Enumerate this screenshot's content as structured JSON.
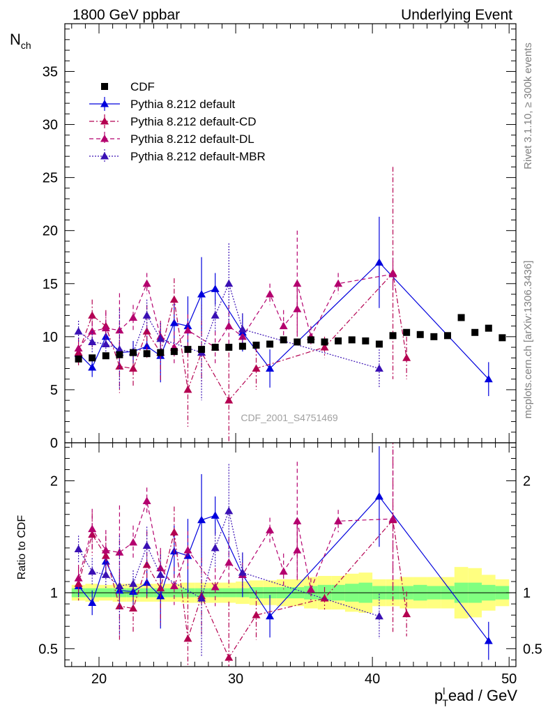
{
  "header": {
    "left": "1800 GeV ppbar",
    "right": "Underlying Event"
  },
  "side_labels": {
    "rivet": "Rivet 3.1.10, ≥ 300k events",
    "mcplots": "mcplots.cern.ch [arXiv:1306.3436]"
  },
  "watermark": "CDF_2001_S4751469",
  "chart_data": [
    {
      "type": "scatter",
      "panel": "main",
      "ylabel": {
        "base": "N",
        "sub": "ch"
      },
      "xlim": [
        17.5,
        50.5
      ],
      "ylim": [
        0,
        39.5
      ],
      "yticks": [
        0,
        5,
        10,
        15,
        20,
        25,
        30,
        35
      ],
      "legend_position": "top-left",
      "series": [
        {
          "name": "CDF",
          "color": "#000000",
          "marker": "square",
          "line": "none",
          "x": [
            18.5,
            19.5,
            20.5,
            21.5,
            22.5,
            23.5,
            24.5,
            25.5,
            26.5,
            27.5,
            28.5,
            29.5,
            30.5,
            31.5,
            32.5,
            33.5,
            34.5,
            35.5,
            36.5,
            37.5,
            38.5,
            39.5,
            40.5,
            41.5,
            42.5,
            43.5,
            44.5,
            45.5,
            46.5,
            47.5,
            48.5,
            49.5
          ],
          "y": [
            7.9,
            8.0,
            8.2,
            8.3,
            8.5,
            8.4,
            8.5,
            8.6,
            8.8,
            8.8,
            9.0,
            9.0,
            9.1,
            9.2,
            9.3,
            9.7,
            9.5,
            9.7,
            9.5,
            9.6,
            9.7,
            9.6,
            9.3,
            10.1,
            10.4,
            10.2,
            10.0,
            10.1,
            11.8,
            10.4,
            10.8,
            9.9
          ]
        },
        {
          "name": "Pythia 8.212 default",
          "color": "#0000dd",
          "marker": "triangle",
          "line": "solid",
          "x": [
            18.5,
            19.5,
            20.5,
            21.5,
            22.5,
            23.5,
            24.5,
            25.5,
            26.5,
            27.5,
            28.5,
            30.5,
            32.5,
            40.5,
            48.5
          ],
          "y": [
            8.4,
            7.1,
            10.0,
            8.5,
            8.6,
            9.1,
            8.2,
            11.3,
            11.0,
            14.0,
            14.5,
            10.4,
            7.0,
            17.0,
            6.0
          ],
          "err": [
            0.8,
            0.9,
            0.9,
            1.0,
            1.0,
            1.0,
            2.5,
            1.9,
            2.8,
            3.5,
            1.5,
            1.8,
            1.8,
            4.3,
            1.6
          ]
        },
        {
          "name": "Pythia 8.212 default-CD",
          "color": "#b40050",
          "marker": "triangle",
          "line": "dashdot",
          "x": [
            18.5,
            19.5,
            20.5,
            21.5,
            22.5,
            23.5,
            24.5,
            25.5,
            26.5,
            27.5,
            29.5,
            31.5,
            36.5,
            41.5,
            42.5
          ],
          "y": [
            8.5,
            12.0,
            11.0,
            7.2,
            7.0,
            10.5,
            8.5,
            13.5,
            5.0,
            8.5,
            4.0,
            7.0,
            9.0,
            16.0,
            8.0
          ],
          "err": [
            1.2,
            1.5,
            1.5,
            2.5,
            1.8,
            2.5,
            2.8,
            2.0,
            3.5,
            3.0,
            4.5,
            2.0,
            1.0,
            10.0,
            2.0
          ]
        },
        {
          "name": "Pythia 8.212 default-DL",
          "color": "#b4006e",
          "marker": "triangle",
          "line": "dashed",
          "x": [
            18.5,
            19.5,
            20.5,
            21.5,
            22.5,
            23.5,
            24.5,
            25.5,
            26.5,
            28.5,
            29.5,
            30.5,
            32.5,
            33.5,
            34.5,
            34.5,
            35.5,
            37.5,
            41.5
          ],
          "y": [
            8.9,
            10.5,
            10.8,
            10.6,
            11.8,
            15.0,
            10.0,
            9.0,
            10.6,
            9.0,
            11.0,
            10.0,
            14.0,
            11.0,
            12.6,
            15.0,
            10.0,
            15.0,
            15.9
          ],
          "err": [
            1.0,
            1.5,
            1.5,
            3.5,
            1.2,
            1.0,
            1.5,
            1.5,
            1.5,
            1.5,
            2.0,
            1.0,
            1.0,
            1.5,
            2.5,
            5.0,
            1.0,
            1.0,
            1.5
          ]
        },
        {
          "name": "Pythia 8.212 default-MBR",
          "color": "#3a10b4",
          "marker": "triangle",
          "line": "dotted",
          "x": [
            18.5,
            19.5,
            20.5,
            21.5,
            22.5,
            23.5,
            24.5,
            27.5,
            28.5,
            29.5,
            30.5,
            40.5
          ],
          "y": [
            10.5,
            9.5,
            9.3,
            8.8,
            8.5,
            12.0,
            9.8,
            8.5,
            12.0,
            15.0,
            10.7,
            7.0
          ],
          "err": [
            1.0,
            1.0,
            1.0,
            3.8,
            1.0,
            1.5,
            1.5,
            4.5,
            1.5,
            3.8,
            1.5,
            1.8
          ]
        }
      ]
    },
    {
      "type": "scatter",
      "panel": "ratio",
      "ylabel": "Ratio to CDF",
      "xlabel": {
        "base": "p",
        "sub": "T",
        "sup": "l",
        "rest": "ead / GeV"
      },
      "xlim": [
        17.5,
        50.5
      ],
      "ylim": [
        0.34,
        2.34
      ],
      "yticks": [
        0.5,
        1,
        2
      ],
      "xticks": [
        20,
        30,
        40,
        50
      ],
      "band_colors": {
        "outer": "#ffff80",
        "inner": "#80ff80"
      },
      "band": {
        "x": [
          18.5,
          19.5,
          20.5,
          21.5,
          22.5,
          23.5,
          24.5,
          25.5,
          26.5,
          27.5,
          28.5,
          29.5,
          30.5,
          31.5,
          32.5,
          33.5,
          34.5,
          35.5,
          36.5,
          37.5,
          38.5,
          39.5,
          40.5,
          41.5,
          42.5,
          43.5,
          44.5,
          45.5,
          46.5,
          47.5,
          48.5,
          49.5
        ],
        "inner": [
          0.04,
          0.04,
          0.04,
          0.04,
          0.04,
          0.04,
          0.04,
          0.04,
          0.04,
          0.04,
          0.04,
          0.04,
          0.04,
          0.05,
          0.05,
          0.05,
          0.05,
          0.06,
          0.07,
          0.07,
          0.08,
          0.09,
          0.06,
          0.06,
          0.06,
          0.07,
          0.06,
          0.06,
          0.09,
          0.09,
          0.07,
          0.06
        ],
        "outer": [
          0.07,
          0.08,
          0.07,
          0.08,
          0.08,
          0.08,
          0.08,
          0.08,
          0.09,
          0.09,
          0.09,
          0.09,
          0.1,
          0.11,
          0.11,
          0.12,
          0.12,
          0.14,
          0.15,
          0.15,
          0.17,
          0.18,
          0.12,
          0.12,
          0.14,
          0.14,
          0.14,
          0.14,
          0.23,
          0.22,
          0.16,
          0.12
        ]
      },
      "series": [
        {
          "name": "Pythia 8.212 default",
          "color": "#0000dd",
          "line": "solid",
          "x": [
            18.5,
            19.5,
            20.5,
            21.5,
            22.5,
            23.5,
            24.5,
            25.5,
            26.5,
            27.5,
            28.5,
            30.5,
            32.5,
            40.5,
            48.5
          ],
          "y": [
            1.06,
            0.91,
            1.28,
            1.02,
            1.01,
            1.09,
            0.97,
            1.37,
            1.33,
            1.65,
            1.69,
            1.16,
            0.79,
            1.86,
            0.57
          ],
          "err": [
            0.1,
            0.11,
            0.11,
            0.12,
            0.12,
            0.12,
            0.29,
            0.23,
            0.33,
            0.41,
            0.17,
            0.2,
            0.19,
            0.45,
            0.17
          ]
        },
        {
          "name": "Pythia 8.212 default-CD",
          "color": "#b40050",
          "line": "dashdot",
          "x": [
            18.5,
            19.5,
            20.5,
            21.5,
            22.5,
            23.5,
            24.5,
            25.5,
            26.5,
            27.5,
            29.5,
            31.5,
            36.5,
            41.5,
            42.5
          ],
          "y": [
            1.08,
            1.52,
            1.33,
            0.88,
            0.86,
            1.25,
            1.04,
            1.54,
            0.59,
            0.97,
            0.42,
            0.8,
            0.95,
            1.65,
            0.81
          ],
          "err": [
            0.15,
            0.19,
            0.18,
            0.3,
            0.21,
            0.3,
            0.33,
            0.23,
            0.4,
            0.34,
            0.5,
            0.22,
            0.1,
            1.0,
            0.2
          ]
        },
        {
          "name": "Pythia 8.212 default-DL",
          "color": "#b4006e",
          "line": "dashed",
          "x": [
            18.5,
            19.5,
            20.5,
            21.5,
            22.5,
            23.5,
            24.5,
            25.5,
            26.5,
            28.5,
            29.5,
            30.5,
            32.5,
            33.5,
            34.5,
            34.5,
            35.5,
            37.5,
            41.5
          ],
          "y": [
            1.13,
            1.57,
            1.38,
            1.36,
            1.45,
            1.82,
            1.22,
            1.06,
            1.38,
            1.05,
            1.27,
            1.16,
            1.56,
            1.19,
            1.38,
            1.64,
            1.03,
            1.64,
            1.66
          ],
          "err": [
            0.12,
            0.18,
            0.18,
            0.42,
            0.15,
            0.12,
            0.18,
            0.17,
            0.17,
            0.17,
            0.22,
            0.11,
            0.11,
            0.16,
            0.27,
            0.53,
            0.1,
            0.1,
            0.62
          ]
        },
        {
          "name": "Pythia 8.212 default-MBR",
          "color": "#3a10b4",
          "line": "dotted",
          "x": [
            18.5,
            19.5,
            20.5,
            21.5,
            22.5,
            23.5,
            24.5,
            27.5,
            28.5,
            29.5,
            30.5,
            40.5
          ],
          "y": [
            1.39,
            1.19,
            1.16,
            1.06,
            1.08,
            1.42,
            1.16,
            0.95,
            1.4,
            1.73,
            1.18,
            0.79
          ],
          "err": [
            0.12,
            0.12,
            0.12,
            0.45,
            0.12,
            0.17,
            0.18,
            0.52,
            0.17,
            0.42,
            0.17,
            0.2
          ]
        }
      ]
    }
  ]
}
